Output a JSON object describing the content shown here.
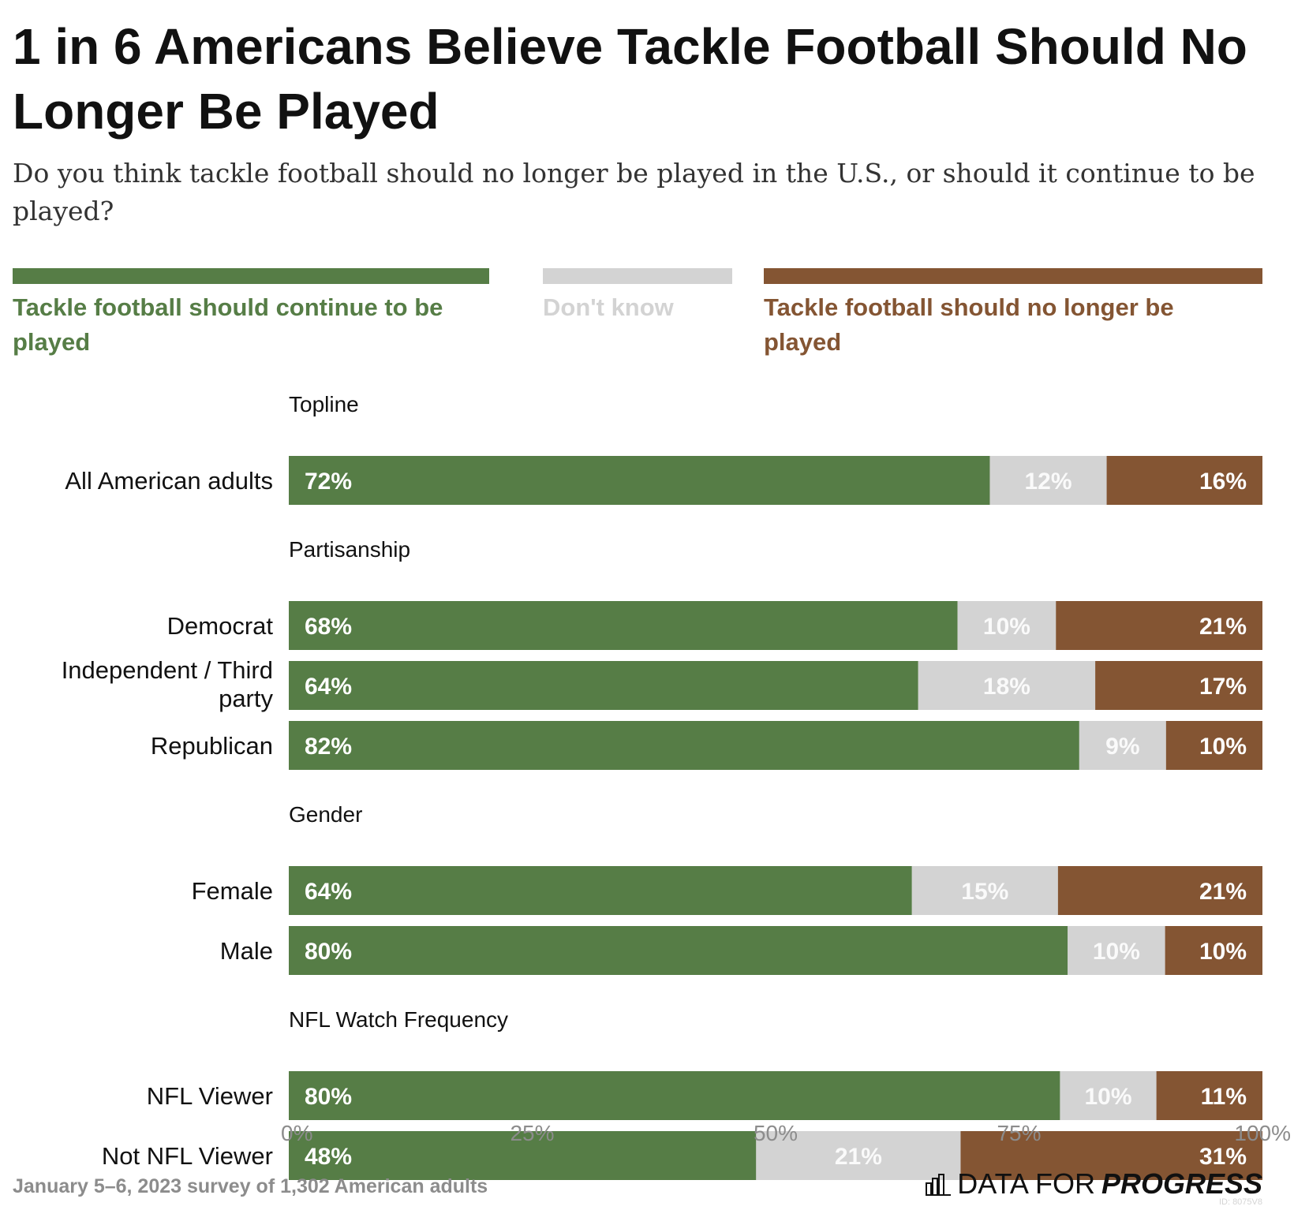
{
  "title": "1 in 6 Americans Believe Tackle Football Should No Longer Be Played",
  "subtitle": "Do you think tackle football should no longer be played in the U.S., or should it continue to be played?",
  "legend": [
    {
      "label": "Tackle football should continue to be played",
      "color": "#567d46"
    },
    {
      "label": "Don't know",
      "color": "#d3d3d3"
    },
    {
      "label": "Tackle football should no longer be played",
      "color": "#845533"
    }
  ],
  "chart_data": {
    "type": "bar",
    "orientation": "horizontal",
    "stacked": true,
    "xlim": [
      0,
      100
    ],
    "x_ticks": [
      "0%",
      "25%",
      "50%",
      "75%",
      "100%"
    ],
    "grid": false,
    "series": [
      {
        "name": "Tackle football should continue to be played",
        "color": "#567d46"
      },
      {
        "name": "Don't know",
        "color": "#d3d3d3"
      },
      {
        "name": "Tackle football should no longer be played",
        "color": "#845533"
      }
    ],
    "groups": [
      {
        "name": "Topline",
        "rows": [
          {
            "label": "All American adults",
            "values": [
              72,
              12,
              16
            ]
          }
        ]
      },
      {
        "name": "Partisanship",
        "rows": [
          {
            "label": "Democrat",
            "values": [
              68,
              10,
              21
            ]
          },
          {
            "label": "Independent / Third party",
            "values": [
              64,
              18,
              17
            ]
          },
          {
            "label": "Republican",
            "values": [
              82,
              9,
              10
            ]
          }
        ]
      },
      {
        "name": "Gender",
        "rows": [
          {
            "label": "Female",
            "values": [
              64,
              15,
              21
            ]
          },
          {
            "label": "Male",
            "values": [
              80,
              10,
              10
            ]
          }
        ]
      },
      {
        "name": "NFL Watch Frequency",
        "rows": [
          {
            "label": "NFL Viewer",
            "values": [
              80,
              10,
              11
            ]
          },
          {
            "label": "Not NFL Viewer",
            "values": [
              48,
              21,
              31
            ]
          }
        ]
      }
    ]
  },
  "footer": {
    "note": "January 5–6, 2023 survey of 1,302 American adults",
    "brand_prefix": "DATA FOR",
    "brand_suffix": "PROGRESS",
    "brand_icon": "bar-chart-icon",
    "id": "ID: 8075V8"
  }
}
